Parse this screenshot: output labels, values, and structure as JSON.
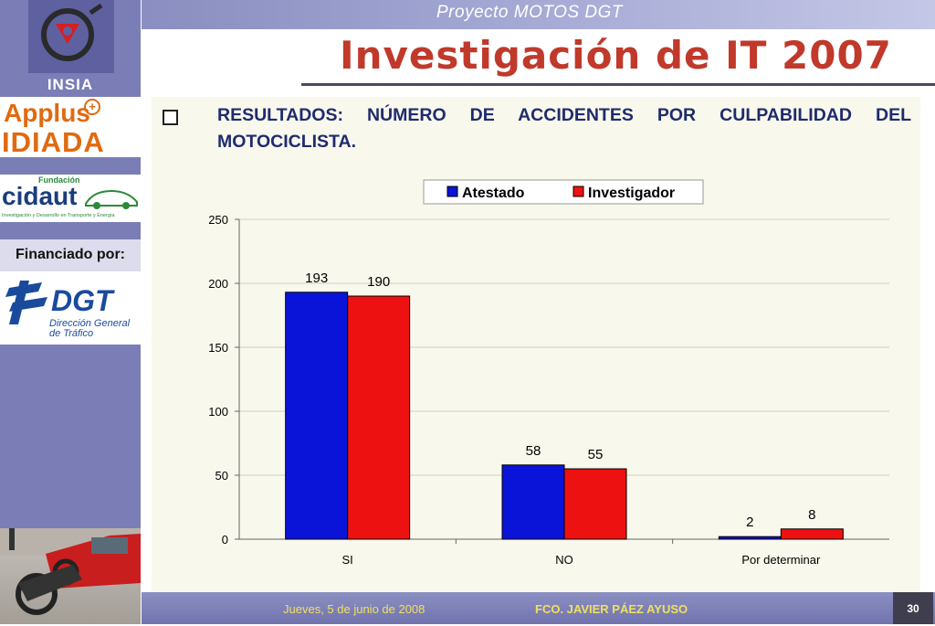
{
  "header": {
    "project": "Proyecto MOTOS DGT",
    "title": "Investigación de IT 2007"
  },
  "sidebar": {
    "insia": "INSIA",
    "applus": "Applus",
    "applus_plus": "+",
    "idiada": "IDIADA",
    "cidaut_fundacion": "Fundación",
    "cidaut": "cidaut",
    "cidaut_sub": "Investigación y Desarrollo en Transporte y Energía",
    "financiado": "Financiado por:",
    "dgt": "DGT",
    "dgt_sub1": "Dirección General",
    "dgt_sub2": "de Tráfico"
  },
  "heading": "RESULTADOS: NÚMERO DE ACCIDENTES POR CULPABILIDAD DEL MOTOCICLISTA.",
  "footer": {
    "date": "Jueves, 5 de junio de 2008",
    "author": "FCO. JAVIER PÁEZ AYUSO",
    "page": "30"
  },
  "chart_data": {
    "type": "bar",
    "categories": [
      "SI",
      "NO",
      "Por determinar"
    ],
    "series": [
      {
        "name": "Atestado",
        "values": [
          193,
          58,
          2
        ],
        "color": "#0a14d8"
      },
      {
        "name": "Investigador",
        "values": [
          190,
          55,
          8
        ],
        "color": "#ee1111"
      }
    ],
    "ylim": [
      0,
      250
    ],
    "yticks": [
      0,
      50,
      100,
      150,
      200,
      250
    ],
    "grid": true,
    "legend": "top"
  }
}
